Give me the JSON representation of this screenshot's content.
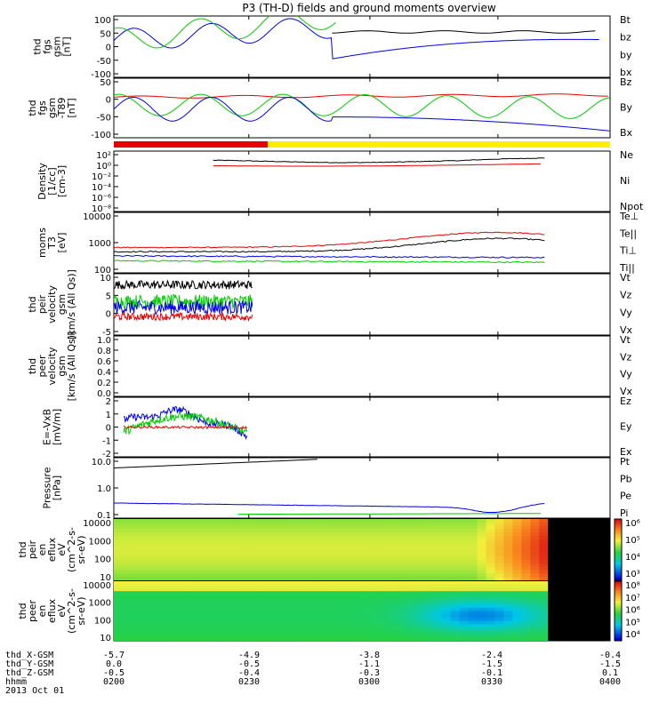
{
  "title": "P3 (TH-D) fields and ground moments overview",
  "colors": {
    "black": "#000000",
    "red": "#e60000",
    "green": "#00cc00",
    "blue": "#0000e6",
    "yellow": "#ffee00"
  },
  "chart_data": [
    {
      "type": "line",
      "id": "fgs",
      "ylabel": [
        "thd",
        "fgs",
        "gsm",
        "[nT]"
      ],
      "ylim": [
        -100,
        100
      ],
      "ticks": [
        "100",
        "50",
        "0",
        "-50",
        "-100"
      ],
      "legend": [
        {
          "name": "Bt",
          "color": "#000000"
        },
        {
          "name": "bz",
          "color": "#e60000"
        },
        {
          "name": "by",
          "color": "#00cc00"
        },
        {
          "name": "bx",
          "color": "#0000e6"
        }
      ]
    },
    {
      "type": "line",
      "id": "fgs_despun",
      "ylabel": [
        "thd",
        "fgs",
        "gsm",
        "-T89",
        "[nT]"
      ],
      "ylim": [
        -130,
        70
      ],
      "ticks": [
        "50",
        "0",
        "-50",
        "-100"
      ],
      "legend": [
        {
          "name": "Bz",
          "color": "#e60000"
        },
        {
          "name": "By",
          "color": "#00cc00"
        },
        {
          "name": "Bx",
          "color": "#0000e6"
        }
      ]
    },
    {
      "type": "line",
      "id": "density",
      "ylabel": [
        "Density",
        "[1/cc]",
        "[cm-3]"
      ],
      "ylim_log": [
        -10,
        3
      ],
      "ticks": [
        "10²",
        "10⁰",
        "10⁻²",
        "10⁻⁴",
        "10⁻⁶",
        "10⁻⁸"
      ],
      "legend": [
        {
          "name": "Ne",
          "color": "#e60000"
        },
        {
          "name": "Ni",
          "color": "#000000"
        },
        {
          "name": "Npot",
          "color": "#0000e6"
        }
      ]
    },
    {
      "type": "line",
      "id": "temperature",
      "ylabel": [
        "moms",
        "T3",
        "[eV]"
      ],
      "ylim_log": [
        2,
        4.2
      ],
      "ticks": [
        "10000",
        "1000",
        "100"
      ],
      "legend": [
        {
          "name": "Te⊥",
          "color": "#e60000"
        },
        {
          "name": "Te||",
          "color": "#000000"
        },
        {
          "name": "Ti⊥",
          "color": "#0000e6"
        },
        {
          "name": "Ti||",
          "color": "#00cc00"
        }
      ]
    },
    {
      "type": "line",
      "id": "ion_velocity",
      "ylabel": [
        "thd",
        "peir",
        "velocity",
        "gsm",
        "[km/s (All Qs)]"
      ],
      "ylim": [
        -7,
        10
      ],
      "ticks": [
        "10",
        "5",
        "0",
        "-5"
      ],
      "legend": [
        {
          "name": "Vt",
          "color": "#000000"
        },
        {
          "name": "Vz",
          "color": "#e60000"
        },
        {
          "name": "Vy",
          "color": "#00cc00"
        },
        {
          "name": "Vx",
          "color": "#0000e6"
        }
      ]
    },
    {
      "type": "line",
      "id": "electron_velocity",
      "ylabel": [
        "thd",
        "peer",
        "velocity",
        "gsm",
        "[km/s (All Qs)]"
      ],
      "ylim": [
        0,
        1
      ],
      "ticks": [
        "1.0",
        "0.8",
        "0.6",
        "0.4",
        "0.2",
        "0.0"
      ],
      "legend": [
        {
          "name": "Vt",
          "color": "#000000"
        },
        {
          "name": "Vz",
          "color": "#e60000"
        },
        {
          "name": "Vy",
          "color": "#00cc00"
        },
        {
          "name": "Vx",
          "color": "#0000e6"
        }
      ]
    },
    {
      "type": "line",
      "id": "efield",
      "ylabel": [
        "E=-VxB",
        "[mV/m]"
      ],
      "ylim": [
        -2,
        2
      ],
      "ticks": [
        "2",
        "1",
        "0",
        "-1",
        "-2"
      ],
      "legend": [
        {
          "name": "Ez",
          "color": "#e60000"
        },
        {
          "name": "Ey",
          "color": "#00cc00"
        },
        {
          "name": "Ex",
          "color": "#0000e6"
        }
      ]
    },
    {
      "type": "line",
      "id": "pressure",
      "ylabel": [
        "Pressure",
        "[nPa]"
      ],
      "ylim_log": [
        -1.5,
        1.3
      ],
      "ticks": [
        "10.0",
        "1.0",
        "0.1"
      ],
      "legend": [
        {
          "name": "Pt",
          "color": "#000000"
        },
        {
          "name": "Pb",
          "color": "#e60000"
        },
        {
          "name": "Pe",
          "color": "#00cc00"
        },
        {
          "name": "Pi",
          "color": "#0000e6"
        }
      ]
    },
    {
      "type": "heatmap",
      "id": "ion_spec",
      "ylabel": [
        "thd",
        "peir",
        "en",
        "eflux",
        "eV",
        "(cm^2-s-",
        "sr-eV)"
      ],
      "ticks": [
        "10000",
        "1000",
        "100",
        "10"
      ],
      "colorbar_ticks": [
        "10⁶",
        "10⁵",
        "10⁴",
        "10³"
      ]
    },
    {
      "type": "heatmap",
      "id": "electron_spec",
      "ylabel": [
        "thd",
        "peer",
        "en",
        "eflux",
        "eV",
        "(cm^2-s-",
        "sr-eV)"
      ],
      "ticks": [
        "10000",
        "1000",
        "100",
        "10"
      ],
      "colorbar_ticks": [
        "10⁸",
        "10⁷",
        "10⁶",
        "10⁵",
        "10⁴"
      ]
    }
  ],
  "footer": {
    "rows": [
      {
        "label": "thd_X-GSM",
        "values": [
          "-5.7",
          "-4.9",
          "-3.8",
          "-2.4",
          "-0.4"
        ]
      },
      {
        "label": "thd_Y-GSM",
        "values": [
          "0.0",
          "-0.5",
          "-1.1",
          "-1.5",
          "-1.5"
        ]
      },
      {
        "label": "thd_Z-GSM",
        "values": [
          "-0.5",
          "-0.4",
          "-0.3",
          "-0.1",
          "0.1"
        ]
      },
      {
        "label": "hhmm",
        "values": [
          "0200",
          "0230",
          "0300",
          "0330",
          "0400"
        ]
      }
    ],
    "date": "2013 Oct 01"
  }
}
